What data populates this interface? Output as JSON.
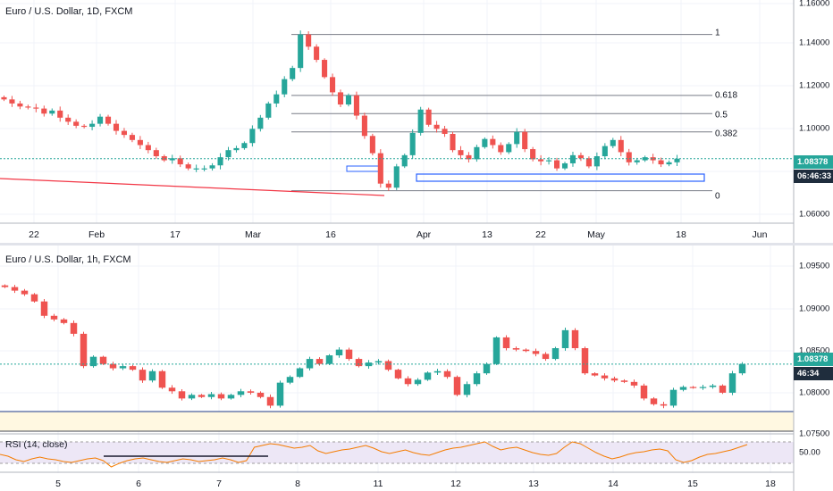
{
  "top_pane": {
    "title": "Euro / U.S. Dollar, 1D, FXCM",
    "y_ticks": [
      "1.16000",
      "1.14000",
      "1.12000",
      "1.10000",
      "1.08000",
      "1.06000"
    ],
    "x_ticks": [
      "22",
      "Feb",
      "17",
      "Mar",
      "16",
      "Apr",
      "13",
      "22",
      "May",
      "18",
      "Jun"
    ],
    "last_price": "1.08378",
    "countdown": "06:46:33",
    "fib_levels": [
      {
        "label": "1",
        "price": 1.145
      },
      {
        "label": "0.618",
        "price": 1.115
      },
      {
        "label": "0.5",
        "price": 1.106
      },
      {
        "label": "0.382",
        "price": 1.097
      },
      {
        "label": "0",
        "price": 1.068
      }
    ]
  },
  "bottom_pane": {
    "title": "Euro / U.S. Dollar, 1h, FXCM",
    "y_ticks": [
      "1.09500",
      "1.09000",
      "1.08500",
      "1.08000",
      "1.07500"
    ],
    "x_ticks": [
      "5",
      "6",
      "7",
      "8",
      "11",
      "12",
      "13",
      "14",
      "15",
      "18"
    ],
    "last_price": "1.08378",
    "countdown": "46:34"
  },
  "rsi_pane": {
    "title": "RSI (14, close)",
    "y_tick": "50.00"
  },
  "colors": {
    "up": "#26a69a",
    "down": "#ef5350",
    "rsi_line": "#f57c00",
    "rsi_band": "#ede7f6",
    "support_zone": "#fff8e1",
    "trendline": "#f23645",
    "box": "#2962ff"
  },
  "chart_data": [
    {
      "type": "candlestick",
      "title": "Euro / U.S. Dollar, 1D, FXCM",
      "ylim": [
        1.052,
        1.162
      ],
      "x_tick_labels": [
        "22",
        "Feb",
        "17",
        "Mar",
        "16",
        "Apr",
        "13",
        "22",
        "May",
        "18",
        "Jun"
      ],
      "close": [
        1.113,
        1.111,
        1.1095,
        1.109,
        1.1085,
        1.106,
        1.1075,
        1.104,
        1.102,
        1.1,
        1.0995,
        1.101,
        1.1045,
        1.101,
        1.0975,
        1.0955,
        1.093,
        1.0905,
        1.088,
        1.085,
        1.083,
        1.084,
        1.081,
        1.079,
        1.079,
        1.079,
        1.0805,
        1.0845,
        1.088,
        1.089,
        1.0915,
        1.0985,
        1.104,
        1.111,
        1.1155,
        1.123,
        1.1285,
        1.145,
        1.139,
        1.1325,
        1.124,
        1.1165,
        1.1105,
        1.115,
        1.105,
        1.095,
        1.0865,
        1.0715,
        1.0695,
        1.08,
        1.0855,
        1.0965,
        1.108,
        1.1005,
        1.0985,
        1.096,
        1.088,
        1.0855,
        1.0835,
        1.0895,
        1.0935,
        1.0905,
        1.087,
        1.091,
        1.097,
        1.0885,
        1.0835,
        1.0825,
        1.083,
        1.079,
        1.0815,
        1.0855,
        1.084,
        1.08,
        1.085,
        1.09,
        1.093,
        1.087,
        1.082,
        1.083,
        1.0845,
        1.083,
        1.081,
        1.082,
        1.0838
      ]
    },
    {
      "type": "candlestick",
      "title": "Euro / U.S. Dollar, 1h, FXCM",
      "ylim": [
        1.0742,
        1.0978
      ],
      "x_tick_labels": [
        "5",
        "6",
        "7",
        "8",
        "11",
        "12",
        "13",
        "14",
        "15",
        "18"
      ],
      "close": [
        1.0945,
        1.094,
        1.0935,
        1.0925,
        1.0905,
        1.09,
        1.0895,
        1.088,
        1.0835,
        1.0848,
        1.0838,
        1.0832,
        1.0835,
        1.083,
        1.0815,
        1.0828,
        1.0805,
        1.08,
        1.079,
        1.0795,
        1.0792,
        1.0796,
        1.079,
        1.0795,
        1.08,
        1.0798,
        1.0792,
        1.078,
        1.0812,
        1.082,
        1.0832,
        1.0845,
        1.0838,
        1.085,
        1.0858,
        1.0845,
        1.0835,
        1.084,
        1.0842,
        1.083,
        1.0818,
        1.081,
        1.0816,
        1.0826,
        1.0828,
        1.082,
        1.0795,
        1.081,
        1.0825,
        1.0838,
        1.0875,
        1.086,
        1.0858,
        1.0856,
        1.0852,
        1.0845,
        1.086,
        1.0885,
        1.086,
        1.0825,
        1.0822,
        1.0818,
        1.0815,
        1.0813,
        1.0808,
        1.079,
        1.0782,
        1.078,
        1.0802,
        1.0806,
        1.0805,
        1.0806,
        1.0808,
        1.0798,
        1.0825,
        1.0838
      ]
    },
    {
      "type": "line",
      "title": "RSI (14, close)",
      "ylim": [
        30,
        70
      ],
      "y_tick_labels": [
        "50.00"
      ],
      "values": [
        50,
        48,
        44,
        42,
        45,
        47,
        45,
        44,
        42,
        41,
        43,
        45,
        46,
        43,
        36,
        40,
        43,
        45,
        46,
        44,
        42,
        41,
        43,
        45,
        44,
        42,
        43,
        44,
        46,
        44,
        41,
        43,
        58,
        60,
        62,
        61,
        59,
        57,
        58,
        60,
        54,
        51,
        53,
        55,
        56,
        58,
        60,
        57,
        53,
        51,
        53,
        55,
        52,
        50,
        49,
        52,
        55,
        57,
        58,
        60,
        62,
        64,
        59,
        55,
        57,
        58,
        55,
        52,
        50,
        49,
        51,
        58,
        64,
        62,
        57,
        52,
        48,
        45,
        47,
        50,
        52,
        53,
        55,
        56,
        54,
        44,
        41,
        43,
        47,
        50,
        51,
        53,
        55,
        58,
        61
      ]
    }
  ]
}
